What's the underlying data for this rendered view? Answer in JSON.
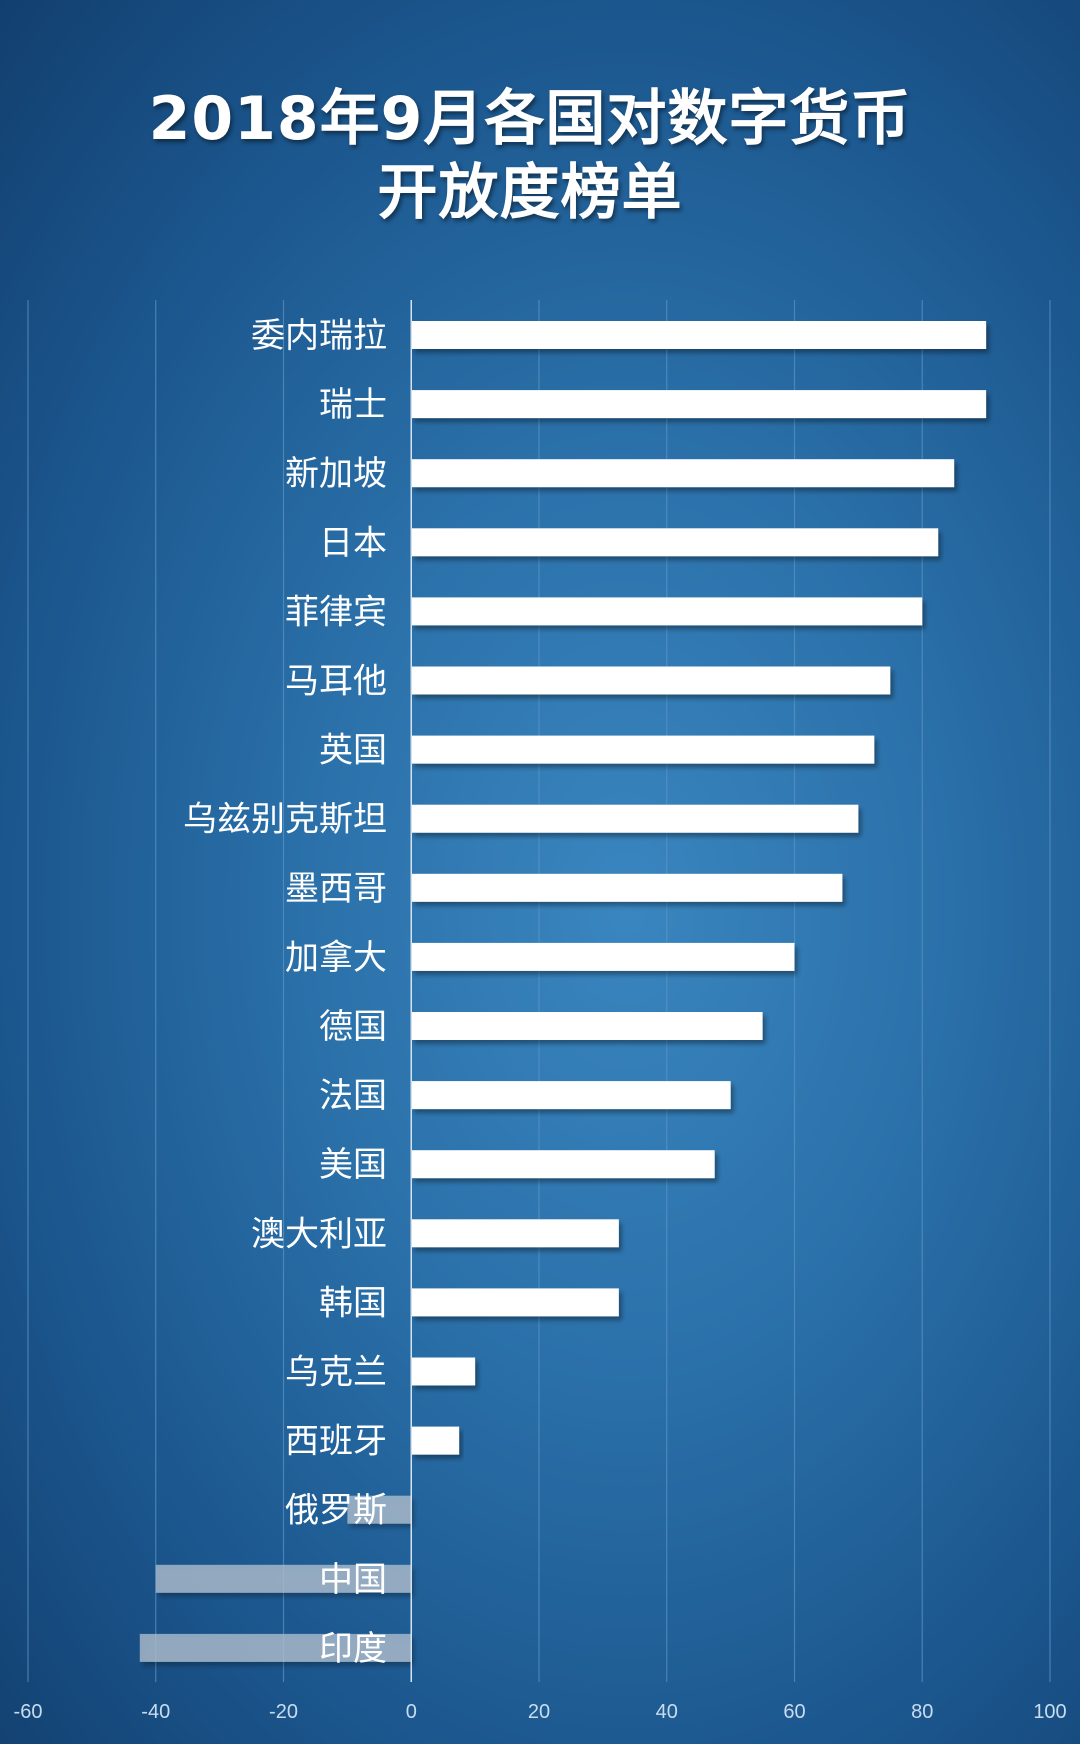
{
  "chart_data": {
    "type": "bar",
    "orientation": "horizontal",
    "title_lines": [
      "2018年9月各国对数字货币",
      "开放度榜单"
    ],
    "categories": [
      "委内瑞拉",
      "瑞士",
      "新加坡",
      "日本",
      "菲律宾",
      "马耳他",
      "英国",
      "乌兹别克斯坦",
      "墨西哥",
      "加拿大",
      "德国",
      "法国",
      "美国",
      "澳大利亚",
      "韩国",
      "乌克兰",
      "西班牙",
      "俄罗斯",
      "中国",
      "印度"
    ],
    "values": [
      90,
      90,
      85,
      82.5,
      80,
      75,
      72.5,
      70,
      67.5,
      60,
      55,
      50,
      47.5,
      32.5,
      32.5,
      10,
      7.5,
      -10,
      -40,
      -42.5
    ],
    "xlim": [
      -60,
      100
    ],
    "xticks": [
      "-60",
      "-40",
      "-20",
      "0",
      "20",
      "40",
      "60",
      "80",
      "100"
    ],
    "grid": true,
    "legend": "none",
    "colors": {
      "positive_bar": "#ffffff",
      "negative_bar": "#b4c3d1",
      "gridline": "#5b94c4",
      "zero_line": "#d4e3f0",
      "title_text": "#ffffff",
      "tick_text": "#c9dcee"
    }
  }
}
